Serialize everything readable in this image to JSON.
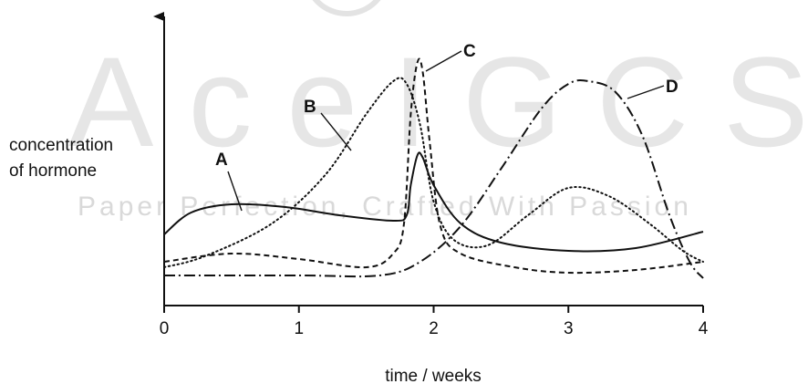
{
  "watermark": {
    "big": "AceIGCSE",
    "small": "Paper Perfection, Crafted With Passion"
  },
  "chart_data": {
    "type": "line",
    "title": "",
    "xlabel": "time / weeks",
    "ylabel": [
      "concentration",
      "of hormone"
    ],
    "xlim": [
      0,
      4
    ],
    "ylim": [
      0,
      10
    ],
    "x_ticks": [
      "0",
      "1",
      "2",
      "3",
      "4"
    ],
    "grid": false,
    "series": [
      {
        "name": "A",
        "dash": "solid",
        "points": [
          [
            0,
            2.6
          ],
          [
            0.2,
            3.4
          ],
          [
            0.5,
            3.7
          ],
          [
            0.9,
            3.6
          ],
          [
            1.3,
            3.3
          ],
          [
            1.7,
            3.1
          ],
          [
            1.8,
            3.3
          ],
          [
            1.83,
            4.4
          ],
          [
            1.88,
            5.5
          ],
          [
            1.92,
            5.4
          ],
          [
            2.0,
            4.4
          ],
          [
            2.2,
            3.0
          ],
          [
            2.5,
            2.3
          ],
          [
            3.0,
            2.0
          ],
          [
            3.5,
            2.1
          ],
          [
            4.0,
            2.7
          ]
        ]
      },
      {
        "name": "B",
        "dash": "dotted",
        "points": [
          [
            0,
            1.4
          ],
          [
            0.3,
            1.8
          ],
          [
            0.8,
            3.0
          ],
          [
            1.2,
            4.8
          ],
          [
            1.5,
            7.0
          ],
          [
            1.7,
            8.2
          ],
          [
            1.8,
            8.1
          ],
          [
            1.9,
            6.6
          ],
          [
            2.0,
            3.8
          ],
          [
            2.15,
            2.4
          ],
          [
            2.4,
            2.2
          ],
          [
            2.7,
            3.3
          ],
          [
            3.0,
            4.3
          ],
          [
            3.3,
            4.0
          ],
          [
            3.6,
            3.0
          ],
          [
            3.85,
            2.0
          ],
          [
            4.0,
            1.6
          ]
        ]
      },
      {
        "name": "C",
        "dash": "dashed",
        "points": [
          [
            0,
            1.6
          ],
          [
            0.5,
            1.9
          ],
          [
            1.0,
            1.7
          ],
          [
            1.5,
            1.4
          ],
          [
            1.7,
            1.9
          ],
          [
            1.78,
            3.0
          ],
          [
            1.83,
            7.0
          ],
          [
            1.88,
            8.9
          ],
          [
            1.92,
            8.5
          ],
          [
            1.97,
            6.0
          ],
          [
            2.05,
            2.9
          ],
          [
            2.2,
            1.9
          ],
          [
            2.6,
            1.4
          ],
          [
            3.0,
            1.2
          ],
          [
            3.5,
            1.3
          ],
          [
            4.0,
            1.6
          ]
        ]
      },
      {
        "name": "D",
        "dash": "dash-dot",
        "points": [
          [
            0,
            1.1
          ],
          [
            1.0,
            1.1
          ],
          [
            1.6,
            1.1
          ],
          [
            1.9,
            1.6
          ],
          [
            2.2,
            2.9
          ],
          [
            2.5,
            5.0
          ],
          [
            2.8,
            7.2
          ],
          [
            3.0,
            8.1
          ],
          [
            3.15,
            8.2
          ],
          [
            3.35,
            7.8
          ],
          [
            3.55,
            6.2
          ],
          [
            3.75,
            3.3
          ],
          [
            3.9,
            1.6
          ],
          [
            4.0,
            1.0
          ]
        ]
      }
    ],
    "annotations": [
      {
        "text": "A",
        "series": "A"
      },
      {
        "text": "B",
        "series": "B"
      },
      {
        "text": "C",
        "series": "C"
      },
      {
        "text": "D",
        "series": "D"
      }
    ]
  }
}
